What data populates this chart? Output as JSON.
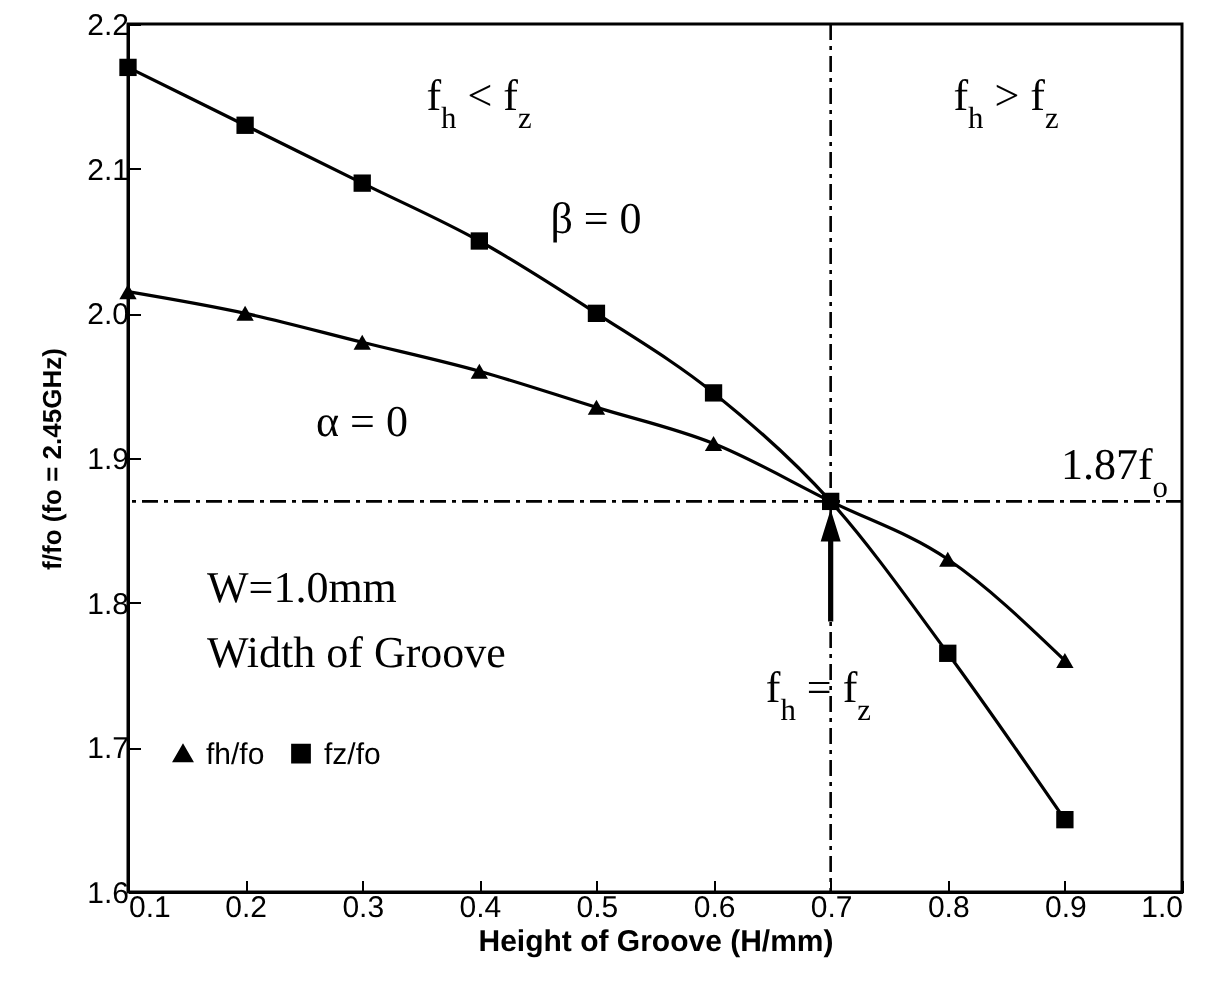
{
  "chart_data": {
    "type": "line",
    "xlabel": "Height of Groove (H/mm)",
    "ylabel": "f/fo (fo = 2.45GHz)",
    "x": [
      0.1,
      0.2,
      0.3,
      0.4,
      0.5,
      0.6,
      0.7,
      0.8,
      0.9
    ],
    "series": [
      {
        "name": "fh/fo",
        "color": "#000000",
        "marker": "triangle",
        "values": [
          2.015,
          2.0,
          1.98,
          1.96,
          1.935,
          1.91,
          1.87,
          1.83,
          1.76
        ]
      },
      {
        "name": "fz/fo",
        "color": "#000000",
        "marker": "square",
        "values": [
          2.17,
          2.13,
          2.09,
          2.05,
          2.0,
          1.945,
          1.87,
          1.765,
          1.65
        ]
      }
    ],
    "xlim": [
      0.1,
      1.0
    ],
    "xticks": [
      0.1,
      0.2,
      0.3,
      0.4,
      0.5,
      0.6,
      0.7,
      0.8,
      0.9,
      {
        "value": 1.0,
        "label": "1.0"
      }
    ],
    "ylim": [
      1.6,
      2.2
    ],
    "yticks": [
      1.6,
      1.7,
      1.8,
      1.9,
      {
        "value": 2.0,
        "label": "2.0"
      },
      2.1,
      2.2
    ],
    "grid": false,
    "legend": "bottom left",
    "line_style": "solid",
    "ref_lines": [
      {
        "axis": "x",
        "value": 0.7,
        "line_style": "dashed"
      },
      {
        "axis": "y",
        "value": 1.87,
        "label": "1.87f$_{o}$",
        "line_style": "dashed"
      }
    ],
    "annotations": [
      "f$_{h}$ < f$_{z}$",
      "f$_{h}$ > f$_{z}$",
      "β = 0",
      "α = 0",
      "W=1.0mm",
      "Width of Groove",
      "f$_{h}$ = f$_{z}$"
    ]
  }
}
